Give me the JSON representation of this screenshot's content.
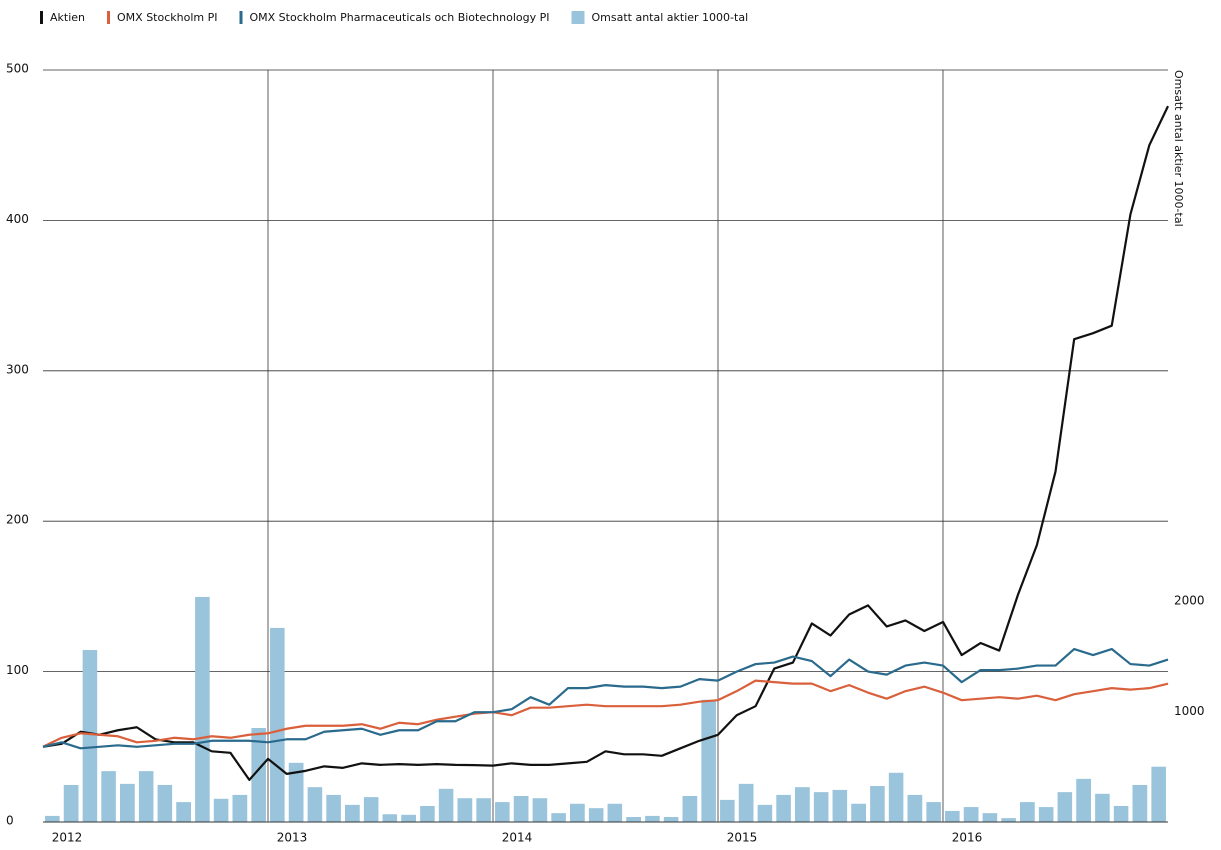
{
  "chart_data": {
    "type": "line",
    "x": [
      2012,
      2012.083,
      2012.167,
      2012.25,
      2012.333,
      2012.417,
      2012.5,
      2012.583,
      2012.667,
      2012.75,
      2012.833,
      2012.917,
      2013,
      2013.083,
      2013.167,
      2013.25,
      2013.333,
      2013.417,
      2013.5,
      2013.583,
      2013.667,
      2013.75,
      2013.833,
      2013.917,
      2014,
      2014.083,
      2014.167,
      2014.25,
      2014.333,
      2014.417,
      2014.5,
      2014.583,
      2014.667,
      2014.75,
      2014.833,
      2014.917,
      2015,
      2015.083,
      2015.167,
      2015.25,
      2015.333,
      2015.417,
      2015.5,
      2015.583,
      2015.667,
      2015.75,
      2015.833,
      2015.917,
      2016,
      2016.083,
      2016.167,
      2016.25,
      2016.333,
      2016.417,
      2016.5,
      2016.583,
      2016.667,
      2016.75,
      2016.833,
      2016.917,
      2017
    ],
    "series": [
      {
        "name": "Aktien",
        "color": "#111111",
        "type": "line",
        "values": [
          50,
          52,
          60,
          58,
          61,
          63,
          55,
          53,
          53,
          47,
          46,
          28,
          42,
          32,
          34,
          37,
          36,
          39,
          38,
          38.5,
          38,
          38.5,
          38,
          37.8,
          37.5,
          39,
          38,
          38,
          39,
          40,
          47,
          45,
          45,
          44,
          49,
          54,
          58,
          71,
          77,
          102,
          106,
          132,
          124,
          138,
          144,
          130,
          134,
          127,
          133,
          111,
          119,
          114,
          151,
          184,
          233,
          321,
          325,
          330,
          404,
          450,
          476
        ]
      },
      {
        "name": "OMX Stockholm PI",
        "color": "#d9603b",
        "type": "line",
        "values": [
          50,
          56,
          59,
          58,
          57,
          53,
          54,
          56,
          55,
          57,
          56,
          58,
          59,
          62,
          64,
          64,
          64,
          65,
          62,
          66,
          65,
          68,
          70,
          72,
          73,
          71,
          76,
          76,
          77,
          78,
          77,
          77,
          77,
          77,
          78,
          80,
          81,
          87,
          94,
          93,
          92,
          92,
          87,
          91,
          86,
          82,
          87,
          90,
          86,
          81,
          82,
          83,
          82,
          84,
          81,
          85,
          87,
          89,
          88,
          89,
          92
        ]
      },
      {
        "name": "OMX Stockholm Pharmaceuticals och Biotechnology PI",
        "color": "#2a6a8c",
        "type": "line",
        "values": [
          50,
          53,
          49,
          50,
          51,
          50,
          51,
          52,
          52,
          54,
          54,
          54,
          53,
          55,
          55,
          60,
          61,
          62,
          58,
          61,
          61,
          67,
          67,
          73,
          73,
          75,
          83,
          78,
          89,
          89,
          91,
          90,
          90,
          89,
          90,
          95,
          94,
          100,
          105,
          106,
          110,
          107,
          97,
          108,
          100,
          98,
          104,
          106,
          104,
          93,
          101,
          101,
          102,
          104,
          104,
          115,
          111,
          115,
          105,
          104,
          108
        ]
      },
      {
        "name": "Omsatt antal aktier 1000-tal",
        "color": "#99c4dc",
        "type": "bar",
        "axis": "y2",
        "values": [
          55,
          335,
          1555,
          460,
          345,
          460,
          335,
          180,
          2035,
          210,
          245,
          850,
          1755,
          535,
          315,
          245,
          155,
          225,
          70,
          65,
          145,
          300,
          215,
          215,
          180,
          235,
          215,
          80,
          165,
          125,
          165,
          45,
          55,
          45,
          235,
          1105,
          200,
          345,
          155,
          245,
          315,
          270,
          290,
          165,
          325,
          445,
          245,
          180,
          100,
          135,
          80,
          35,
          180,
          135,
          270,
          390,
          255,
          145,
          335,
          500,
          null
        ]
      }
    ],
    "y2_label": "Omsatt antal aktier 1000-tal",
    "xlim": [
      2012,
      2017
    ],
    "xticks": [
      2012,
      2013,
      2014,
      2015,
      2016
    ],
    "ylim": [
      0,
      500
    ],
    "yticks": [
      0,
      100,
      200,
      300,
      400,
      500
    ],
    "y2lim": [
      0,
      6800
    ],
    "y2ticks": [
      1000,
      2000
    ],
    "grid": true,
    "legend": "top-left"
  }
}
